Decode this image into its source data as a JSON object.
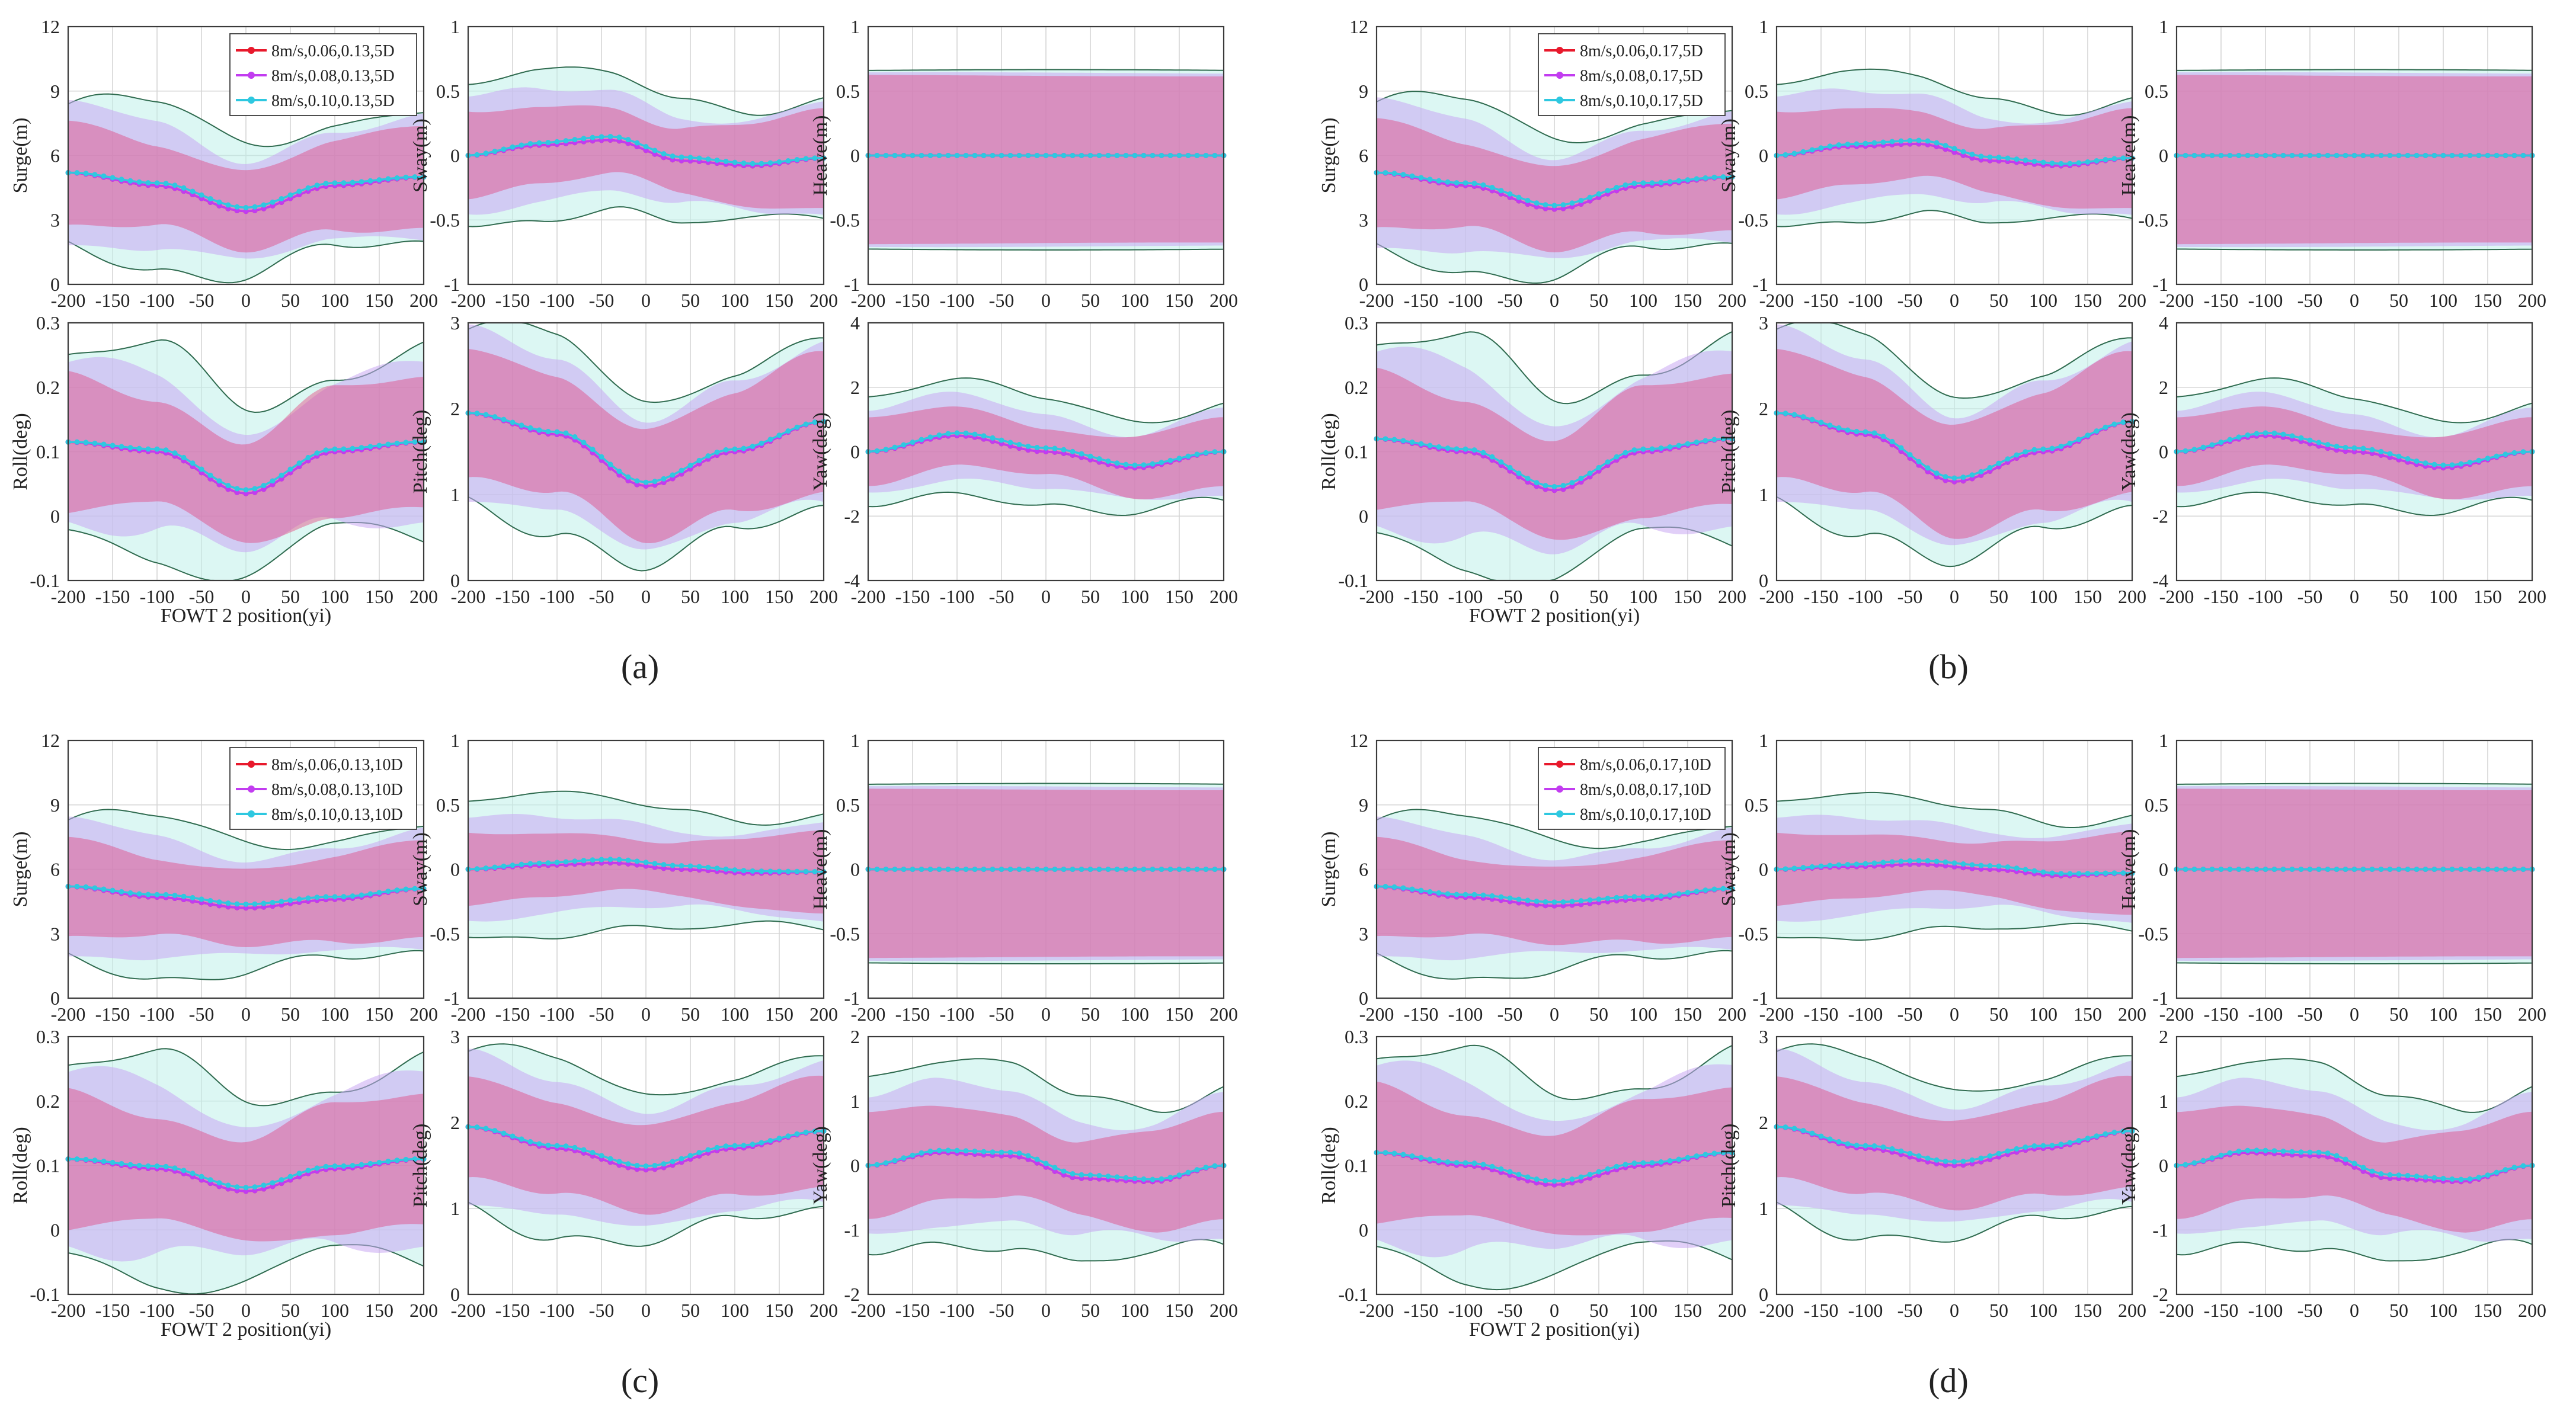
{
  "figure": {
    "panel_labels": [
      "(a)",
      "(b)",
      "(c)",
      "(d)"
    ],
    "x_label": "FOWT 2 position(yi)",
    "colors": {
      "series_1": "#e8192c",
      "series_2": "#c23cf0",
      "series_3": "#2ec8e0",
      "band_1": "#e23c78",
      "band_2": "#c9a8f2",
      "band_3": "#bff0ea",
      "band_edge": "#2f6b4f",
      "grid": "#d4d4d4"
    }
  },
  "chart_data": [
    {
      "panel": "(a)",
      "type": "line",
      "legend": [
        "8m/s,0.06,0.13,5D",
        "8m/s,0.08,0.13,5D",
        "8m/s,0.10,0.13,5D"
      ],
      "subplots": [
        {
          "ylabel": "Surge(m)",
          "ylim": [
            0,
            12
          ],
          "yticks": [
            "0",
            "3",
            "6",
            "9",
            "12"
          ],
          "mean": [
            5.2,
            4.6,
            3.4,
            4.6,
            5.0
          ],
          "dip": 0,
          "spread": [
            2.1,
            2.7,
            3.2
          ]
        },
        {
          "ylabel": "Sway(m)",
          "ylim": [
            -1,
            1
          ],
          "yticks": [
            "-1",
            "-0.5",
            "0",
            "0.5",
            "1"
          ],
          "mean": [
            0,
            0.08,
            0.12,
            -0.04,
            -0.08,
            -0.02
          ],
          "dip": 0,
          "spread": [
            0.3,
            0.4,
            0.5
          ]
        },
        {
          "ylabel": "Heave(m)",
          "ylim": [
            -1,
            1
          ],
          "yticks": [
            "-1",
            "-0.5",
            "0",
            "0.5",
            "1"
          ],
          "mean": [
            0,
            0
          ],
          "dip": 0,
          "spread": [
            0.62,
            0.64,
            0.66
          ],
          "flat_band": true
        },
        {
          "ylabel": "Roll(deg)",
          "ylim": [
            -0.1,
            0.3
          ],
          "yticks": [
            "-0.1",
            "0",
            "0.1",
            "0.2",
            "0.3"
          ],
          "mean": [
            0.115,
            0.1,
            0.035,
            0.1,
            0.115
          ],
          "dip": 0,
          "spread": [
            0.09,
            0.11,
            0.14
          ]
        },
        {
          "ylabel": "Pitch(deg)",
          "ylim": [
            0,
            3
          ],
          "yticks": [
            "0",
            "1",
            "2",
            "3"
          ],
          "mean": [
            1.95,
            1.7,
            1.1,
            1.5,
            1.85
          ],
          "dip": 0,
          "spread": [
            0.7,
            0.85,
            1.0
          ]
        },
        {
          "ylabel": "Yaw(deg)",
          "ylim": [
            -4,
            4
          ],
          "yticks": [
            "-4",
            "-2",
            "0",
            "2",
            "4"
          ],
          "mean": [
            0,
            0.5,
            0,
            -0.5,
            0
          ],
          "dip": 0,
          "spread": [
            0.9,
            1.2,
            1.6
          ]
        }
      ]
    },
    {
      "panel": "(b)",
      "type": "line",
      "legend": [
        "8m/s,0.06,0.17,5D",
        "8m/s,0.08,0.17,5D",
        "8m/s,0.10,0.17,5D"
      ],
      "subplots": [
        {
          "ylabel": "Surge(m)",
          "ylim": [
            0,
            12
          ],
          "yticks": [
            "0",
            "3",
            "6",
            "9",
            "12"
          ],
          "mean": [
            5.2,
            4.6,
            3.5,
            4.6,
            5.0
          ],
          "dip": 0,
          "spread": [
            2.2,
            2.8,
            3.3
          ]
        },
        {
          "ylabel": "Sway(m)",
          "ylim": [
            -1,
            1
          ],
          "yticks": [
            "-1",
            "-0.5",
            "0",
            "0.5",
            "1"
          ],
          "mean": [
            0,
            0.07,
            0.09,
            -0.04,
            -0.08,
            -0.02
          ],
          "dip": 0,
          "spread": [
            0.3,
            0.4,
            0.5
          ]
        },
        {
          "ylabel": "Heave(m)",
          "ylim": [
            -1,
            1
          ],
          "yticks": [
            "-1",
            "-0.5",
            "0",
            "0.5",
            "1"
          ],
          "mean": [
            0,
            0
          ],
          "dip": 0,
          "spread": [
            0.62,
            0.64,
            0.66
          ],
          "flat_band": true
        },
        {
          "ylabel": "Roll(deg)",
          "ylim": [
            -0.1,
            0.3
          ],
          "yticks": [
            "-0.1",
            "0",
            "0.1",
            "0.2",
            "0.3"
          ],
          "mean": [
            0.12,
            0.1,
            0.04,
            0.1,
            0.12
          ],
          "dip": 0,
          "spread": [
            0.09,
            0.12,
            0.15
          ]
        },
        {
          "ylabel": "Pitch(deg)",
          "ylim": [
            0,
            3
          ],
          "yticks": [
            "0",
            "1",
            "2",
            "3"
          ],
          "mean": [
            1.95,
            1.7,
            1.15,
            1.5,
            1.85
          ],
          "dip": 0,
          "spread": [
            0.7,
            0.85,
            1.0
          ]
        },
        {
          "ylabel": "Yaw(deg)",
          "ylim": [
            -4,
            4
          ],
          "yticks": [
            "-4",
            "-2",
            "0",
            "2",
            "4"
          ],
          "mean": [
            0,
            0.5,
            0,
            -0.5,
            0
          ],
          "dip": 0,
          "spread": [
            0.9,
            1.2,
            1.6
          ]
        }
      ]
    },
    {
      "panel": "(c)",
      "type": "line",
      "legend": [
        "8m/s,0.06,0.13,10D",
        "8m/s,0.08,0.13,10D",
        "8m/s,0.10,0.13,10D"
      ],
      "subplots": [
        {
          "ylabel": "Surge(m)",
          "ylim": [
            0,
            12
          ],
          "yticks": [
            "0",
            "3",
            "6",
            "9",
            "12"
          ],
          "mean": [
            5.2,
            4.7,
            4.2,
            4.6,
            5.1
          ],
          "dip": 0,
          "spread": [
            2.0,
            2.6,
            3.1
          ]
        },
        {
          "ylabel": "Sway(m)",
          "ylim": [
            -1,
            1
          ],
          "yticks": [
            "-1",
            "-0.5",
            "0",
            "0.5",
            "1"
          ],
          "mean": [
            0,
            0.03,
            0.05,
            0,
            -0.03,
            -0.02
          ],
          "dip": 0,
          "spread": [
            0.25,
            0.35,
            0.48
          ]
        },
        {
          "ylabel": "Heave(m)",
          "ylim": [
            -1,
            1
          ],
          "yticks": [
            "-1",
            "-0.5",
            "0",
            "0.5",
            "1"
          ],
          "mean": [
            0,
            0
          ],
          "dip": 0,
          "spread": [
            0.62,
            0.64,
            0.66
          ],
          "flat_band": true
        },
        {
          "ylabel": "Roll(deg)",
          "ylim": [
            -0.1,
            0.3
          ],
          "yticks": [
            "-0.1",
            "0",
            "0.1",
            "0.2",
            "0.3"
          ],
          "mean": [
            0.11,
            0.095,
            0.06,
            0.095,
            0.11
          ],
          "dip": 0,
          "spread": [
            0.09,
            0.12,
            0.15
          ]
        },
        {
          "ylabel": "Pitch(deg)",
          "ylim": [
            0,
            3
          ],
          "yticks": [
            "0",
            "1",
            "2",
            "3"
          ],
          "mean": [
            1.95,
            1.7,
            1.45,
            1.7,
            1.9
          ],
          "dip": 0,
          "spread": [
            0.55,
            0.75,
            0.9
          ]
        },
        {
          "ylabel": "Yaw(deg)",
          "ylim": [
            -2,
            2
          ],
          "yticks": [
            "-2",
            "-1",
            "0",
            "1",
            "2"
          ],
          "mean": [
            0,
            0.2,
            0.15,
            -0.2,
            -0.25,
            0
          ],
          "dip": 0,
          "spread": [
            0.7,
            1.0,
            1.3
          ]
        }
      ]
    },
    {
      "panel": "(d)",
      "type": "line",
      "legend": [
        "8m/s,0.06,0.17,10D",
        "8m/s,0.08,0.17,10D",
        "8m/s,0.10,0.17,10D"
      ],
      "subplots": [
        {
          "ylabel": "Surge(m)",
          "ylim": [
            0,
            12
          ],
          "yticks": [
            "0",
            "3",
            "6",
            "9",
            "12"
          ],
          "mean": [
            5.2,
            4.7,
            4.3,
            4.6,
            5.1
          ],
          "dip": 0,
          "spread": [
            2.0,
            2.6,
            3.1
          ]
        },
        {
          "ylabel": "Sway(m)",
          "ylim": [
            -1,
            1
          ],
          "yticks": [
            "-1",
            "-0.5",
            "0",
            "0.5",
            "1"
          ],
          "mean": [
            0,
            0.02,
            0.04,
            0,
            -0.05,
            -0.03
          ],
          "dip": 0,
          "spread": [
            0.25,
            0.35,
            0.48
          ]
        },
        {
          "ylabel": "Heave(m)",
          "ylim": [
            -1,
            1
          ],
          "yticks": [
            "-1",
            "-0.5",
            "0",
            "0.5",
            "1"
          ],
          "mean": [
            0,
            0
          ],
          "dip": 0,
          "spread": [
            0.62,
            0.64,
            0.66
          ],
          "flat_band": true
        },
        {
          "ylabel": "Roll(deg)",
          "ylim": [
            -0.1,
            0.3
          ],
          "yticks": [
            "-0.1",
            "0",
            "0.1",
            "0.2",
            "0.3"
          ],
          "mean": [
            0.12,
            0.1,
            0.07,
            0.1,
            0.12
          ],
          "dip": 0,
          "spread": [
            0.09,
            0.12,
            0.15
          ]
        },
        {
          "ylabel": "Pitch(deg)",
          "ylim": [
            0,
            3
          ],
          "yticks": [
            "0",
            "1",
            "2",
            "3"
          ],
          "mean": [
            1.95,
            1.7,
            1.5,
            1.7,
            1.9
          ],
          "dip": 0,
          "spread": [
            0.55,
            0.75,
            0.9
          ]
        },
        {
          "ylabel": "Yaw(deg)",
          "ylim": [
            -2,
            2
          ],
          "yticks": [
            "-2",
            "-1",
            "0",
            "1",
            "2"
          ],
          "mean": [
            0,
            0.2,
            0.15,
            -0.2,
            -0.25,
            0
          ],
          "dip": 0,
          "spread": [
            0.7,
            1.0,
            1.3
          ]
        }
      ]
    }
  ],
  "x_axis": {
    "range": [
      -200,
      200
    ],
    "ticks": [
      "-200",
      "-150",
      "-100",
      "-50",
      "0",
      "50",
      "100",
      "150",
      "200"
    ]
  }
}
